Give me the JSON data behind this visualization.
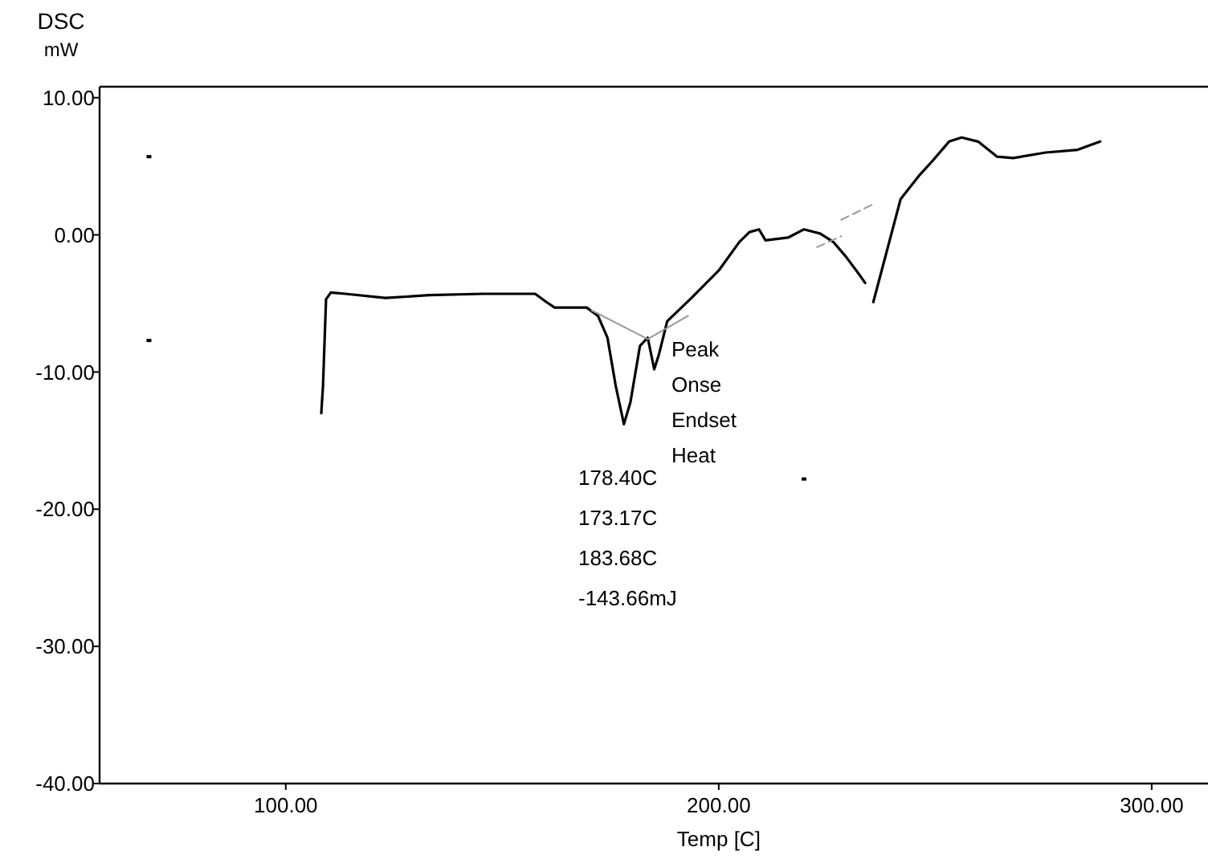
{
  "chart_data": {
    "type": "line",
    "xlabel": "Temp  [C]",
    "ylabel": "DSC\nmW",
    "xlim": [
      57,
      313
    ],
    "ylim": [
      -40,
      10.8
    ],
    "xticks": [
      {
        "value": 100,
        "label": "100.00"
      },
      {
        "value": 200,
        "label": "200.00"
      },
      {
        "value": 300,
        "label": "300.00"
      }
    ],
    "yticks": [
      {
        "value": 10,
        "label": "10.00"
      },
      {
        "value": 0,
        "label": "0.00"
      },
      {
        "value": -10,
        "label": "-10.00"
      },
      {
        "value": -20,
        "label": "-20.00"
      },
      {
        "value": -30,
        "label": "-30.00"
      },
      {
        "value": -40,
        "label": "-40.00"
      }
    ],
    "grid": false,
    "annotations": [
      "Peak",
      "Onse",
      "Endset",
      "Heat",
      "178.40C",
      "173.17C",
      "183.68C",
      "-143.66mJ"
    ],
    "series": [
      {
        "color": "#000000",
        "line_style": "solid",
        "x": [
          108.2,
          108.6,
          109.3,
          110.4,
          113.8,
          123.0,
          133.1,
          145.4,
          157.6,
          160.2,
          162.1,
          169.5,
          172.1,
          174.3,
          176.2,
          178.1,
          179.6,
          181.8,
          183.6,
          185.1,
          186.2,
          188.1,
          193.7,
          200.0,
          204.8,
          207.1,
          209.3,
          210.8,
          216.0,
          219.7,
          223.4,
          226.4,
          229.4,
          232.7,
          233.8,
          234.8,
          235.7,
          242.0,
          246.5,
          249.4,
          253.2,
          256.1,
          259.9,
          264.3,
          268.0,
          275.5,
          282.9,
          288.1
        ],
        "values": [
          -13.0,
          -11.0,
          -4.7,
          -4.2,
          -4.3,
          -4.6,
          -4.4,
          -4.3,
          -4.3,
          -4.9,
          -5.3,
          -5.3,
          -5.9,
          -7.5,
          -11.0,
          -13.8,
          -12.2,
          -8.1,
          -7.5,
          -9.8,
          -8.7,
          -6.3,
          -4.6,
          -2.6,
          -0.5,
          0.2,
          0.4,
          -0.4,
          -0.2,
          0.4,
          0.1,
          -0.5,
          -1.6,
          -3.0,
          -3.5,
          null,
          -4.9,
          2.6,
          4.4,
          5.4,
          6.8,
          7.1,
          6.8,
          5.7,
          5.6,
          6.0,
          6.2,
          6.8
        ]
      },
      {
        "type": "line",
        "color": "#999999",
        "line_style": "solid",
        "x": [
          170.6,
          183.6,
          192.9
        ],
        "values": [
          -5.5,
          -7.6,
          -5.9
        ]
      },
      {
        "type": "line",
        "color": "#999999",
        "line_style": "dashed",
        "x": [
          222.7,
          228.3
        ],
        "values": [
          -0.9,
          -0.1
        ]
      },
      {
        "type": "line",
        "color": "#999999",
        "line_style": "dashed",
        "x": [
          228.3,
          236.1
        ],
        "values": [
          1.1,
          2.3
        ]
      },
      {
        "type": "scatter",
        "color": "#000000",
        "marker": "square",
        "x": [
          68.4,
          68.4,
          219.7
        ],
        "values": [
          5.7,
          -7.7,
          -17.8
        ]
      }
    ]
  }
}
